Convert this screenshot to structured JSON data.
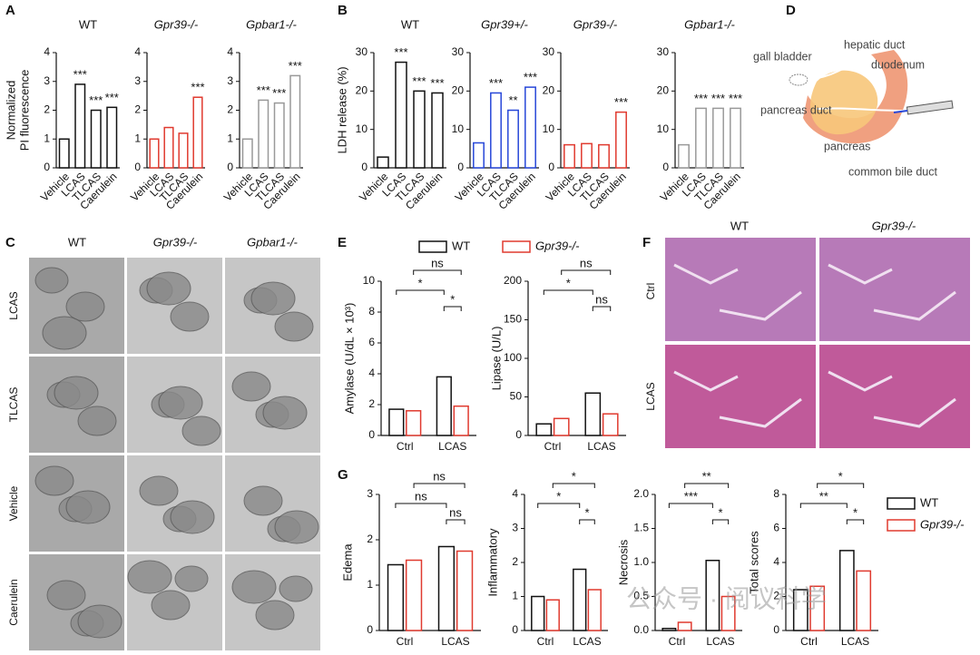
{
  "panel_labels": [
    "A",
    "B",
    "C",
    "D",
    "E",
    "F",
    "G"
  ],
  "diagram": {
    "labels": [
      "gall bladder",
      "hepatic duct",
      "duodenum",
      "pancreas duct",
      "pancreas",
      "common bile duct"
    ]
  },
  "organoid_images": {
    "columns": [
      "WT",
      "Gpr39-/-",
      "Gpbar1-/-"
    ],
    "rows": [
      "LCAS",
      "TLCAS",
      "Vehicle",
      "Caerulein"
    ]
  },
  "histology_images": {
    "columns": [
      "WT",
      "Gpr39-/-"
    ],
    "rows": [
      "Ctrl",
      "LCAS"
    ]
  },
  "watermark": "公众号 · 阅议科学",
  "chart_data": [
    {
      "type": "bar",
      "title": "WT",
      "ylabel": [
        "Normalized",
        "PI fluorescence"
      ],
      "categories": [
        "Vehicle",
        "LCAS",
        "TLCAS",
        "Caerulein"
      ],
      "values": [
        1.0,
        2.9,
        2.0,
        2.1
      ],
      "color": "#111111",
      "annotations": [
        null,
        "***",
        "***",
        "***"
      ],
      "ylim": [
        0,
        4
      ],
      "yticks": [
        0,
        1,
        2,
        3,
        4
      ]
    },
    {
      "type": "bar",
      "title": "Gpr39-/-",
      "title_italic": true,
      "categories": [
        "Vehicle",
        "LCAS",
        "TLCAS",
        "Caerulein"
      ],
      "values": [
        1.0,
        1.4,
        1.2,
        2.45
      ],
      "color": "#e03a2f",
      "annotations": [
        null,
        null,
        null,
        "***"
      ],
      "ylim": [
        0,
        4
      ],
      "yticks": [
        0,
        1,
        2,
        3,
        4
      ]
    },
    {
      "type": "bar",
      "title": "Gpbar1-/-",
      "title_italic": true,
      "categories": [
        "Vehicle",
        "LCAS",
        "TLCAS",
        "Caerulein"
      ],
      "values": [
        1.0,
        2.35,
        2.25,
        3.2
      ],
      "color": "#999999",
      "annotations": [
        null,
        "***",
        "***",
        "***"
      ],
      "ylim": [
        0,
        4
      ],
      "yticks": [
        0,
        1,
        2,
        3,
        4
      ]
    },
    {
      "type": "bar",
      "title": "WT",
      "ylabel": [
        "LDH release (%)"
      ],
      "categories": [
        "Vehicle",
        "LCAS",
        "TLCAS",
        "Caerulein"
      ],
      "values": [
        2.8,
        27.5,
        20,
        19.5
      ],
      "color": "#111111",
      "annotations": [
        null,
        "***",
        "***",
        "***"
      ],
      "ylim": [
        0,
        30
      ],
      "yticks": [
        0,
        10,
        20,
        30
      ]
    },
    {
      "type": "bar",
      "title": "Gpr39+/-",
      "title_italic": true,
      "categories": [
        "Vehicle",
        "LCAS",
        "TLCAS",
        "Caerulein"
      ],
      "values": [
        6.5,
        19.5,
        15,
        21
      ],
      "color": "#2747d8",
      "annotations": [
        null,
        "***",
        "**",
        "***"
      ],
      "ylim": [
        0,
        30
      ],
      "yticks": [
        0,
        10,
        20,
        30
      ]
    },
    {
      "type": "bar",
      "title": "Gpr39-/-",
      "title_italic": true,
      "categories": [
        "Vehicle",
        "LCAS",
        "TLCAS",
        "Caerulein"
      ],
      "values": [
        6,
        6.3,
        6,
        14.5
      ],
      "color": "#e03a2f",
      "annotations": [
        null,
        null,
        null,
        "***"
      ],
      "ylim": [
        0,
        30
      ],
      "yticks": [
        0,
        10,
        20,
        30
      ]
    },
    {
      "type": "bar",
      "title": "Gpbar1-/-",
      "title_italic": true,
      "categories": [
        "Vehicle",
        "LCAS",
        "TLCAS",
        "Caerulein"
      ],
      "values": [
        6,
        15.5,
        15.5,
        15.5
      ],
      "color": "#999999",
      "annotations": [
        null,
        "***",
        "***",
        "***"
      ],
      "ylim": [
        0,
        30
      ],
      "yticks": [
        0,
        10,
        20,
        30
      ]
    },
    {
      "type": "grouped-bar",
      "ylabel": [
        "Amylase  (U/dL × 10³)"
      ],
      "categories": [
        "Ctrl",
        "LCAS"
      ],
      "series": [
        {
          "name": "WT",
          "color": "#111111",
          "values": [
            1.7,
            3.8
          ]
        },
        {
          "name": "Gpr39-/-",
          "color": "#e03a2f",
          "values": [
            1.6,
            1.9
          ]
        }
      ],
      "comparisons": [
        "*",
        "*",
        "ns"
      ],
      "legend": "top",
      "ylim": [
        0,
        10
      ],
      "yticks": [
        0,
        2,
        4,
        6,
        8,
        10
      ]
    },
    {
      "type": "grouped-bar",
      "ylabel": [
        "Lipase (U/L)"
      ],
      "categories": [
        "Ctrl",
        "LCAS"
      ],
      "series": [
        {
          "color": "#111111",
          "values": [
            15,
            55
          ]
        },
        {
          "color": "#e03a2f",
          "values": [
            22,
            28
          ]
        }
      ],
      "comparisons": [
        "*",
        "ns",
        "ns"
      ],
      "ylim": [
        0,
        200
      ],
      "yticks": [
        0,
        50,
        100,
        150,
        200
      ]
    },
    {
      "type": "grouped-bar",
      "ylabel": [
        "Edema"
      ],
      "categories": [
        "Ctrl",
        "LCAS"
      ],
      "series": [
        {
          "color": "#111111",
          "values": [
            1.45,
            1.85
          ]
        },
        {
          "color": "#e03a2f",
          "values": [
            1.55,
            1.75
          ]
        }
      ],
      "comparisons": [
        "ns",
        "ns",
        "ns"
      ],
      "ylim": [
        0,
        3
      ],
      "yticks": [
        0,
        1,
        2,
        3
      ]
    },
    {
      "type": "grouped-bar",
      "ylabel": [
        "Inflammatory"
      ],
      "categories": [
        "Ctrl",
        "LCAS"
      ],
      "series": [
        {
          "color": "#111111",
          "values": [
            1.0,
            1.8
          ]
        },
        {
          "color": "#e03a2f",
          "values": [
            0.9,
            1.2
          ]
        }
      ],
      "comparisons": [
        "*",
        "*",
        "*"
      ],
      "ylim": [
        0,
        4
      ],
      "yticks": [
        0,
        1,
        2,
        3,
        4
      ]
    },
    {
      "type": "grouped-bar",
      "ylabel": [
        "Necrosis"
      ],
      "categories": [
        "Ctrl",
        "LCAS"
      ],
      "series": [
        {
          "color": "#111111",
          "values": [
            0.03,
            1.03
          ]
        },
        {
          "color": "#e03a2f",
          "values": [
            0.12,
            0.5
          ]
        }
      ],
      "comparisons": [
        "***",
        "*",
        "**"
      ],
      "ylim": [
        0,
        2
      ],
      "yticks": [
        {
          "value": 0,
          "label": "0.0"
        },
        0.5,
        {
          "value": 1,
          "label": "1.0"
        },
        1.5,
        {
          "value": 2,
          "label": "2.0"
        }
      ]
    },
    {
      "type": "grouped-bar",
      "ylabel": [
        "Total scores"
      ],
      "categories": [
        "Ctrl",
        "LCAS"
      ],
      "series": [
        {
          "name": "WT",
          "color": "#111111",
          "values": [
            2.4,
            4.7
          ]
        },
        {
          "name": "Gpr39-/-",
          "color": "#e03a2f",
          "values": [
            2.6,
            3.5
          ]
        }
      ],
      "comparisons": [
        "**",
        "*",
        "*"
      ],
      "legend": "right",
      "ylim": [
        0,
        8
      ],
      "yticks": [
        0,
        2,
        4,
        6,
        8
      ]
    }
  ]
}
